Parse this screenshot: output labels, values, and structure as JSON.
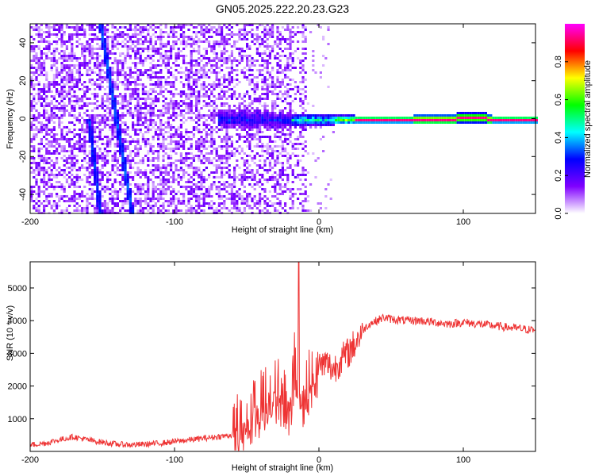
{
  "title": "GN05.2025.222.20.23.G23",
  "chart_data": [
    {
      "type": "heatmap",
      "xlabel": "Height of straight line (km)",
      "ylabel": "Frequency (Hz)",
      "xlim": [
        -200,
        150
      ],
      "ylim": [
        -50,
        50
      ],
      "xticks": [
        -200,
        -100,
        0,
        100
      ],
      "yticks": [
        -40,
        -20,
        0,
        20,
        40
      ],
      "colorbar": {
        "label": "Normalized spectral amplitude",
        "range": [
          0,
          1
        ],
        "ticks": [
          0.0,
          0.2,
          0.4,
          0.6,
          0.8
        ],
        "colormap": [
          "#ffffff",
          "#8000ff",
          "#0000ff",
          "#00ffff",
          "#00ff00",
          "#ffff00",
          "#ff0000",
          "#ff00ff"
        ]
      },
      "features": [
        {
          "name": "scatter",
          "x": [
            -200,
            -10
          ],
          "y": [
            -50,
            50
          ],
          "amplitude": 0.1
        },
        {
          "name": "diagonal-streak-1",
          "x": [
            -152,
            -130
          ],
          "y": [
            50,
            -50
          ],
          "amplitude": 0.22
        },
        {
          "name": "diagonal-streak-2",
          "x": [
            -160,
            -152
          ],
          "y": [
            0,
            -50
          ],
          "amplitude": 0.2
        },
        {
          "name": "central-band",
          "x": [
            -70,
            150
          ],
          "y": [
            0,
            0
          ],
          "amplitude": 0.9
        }
      ]
    },
    {
      "type": "line",
      "xlabel": "Height of straight line (km)",
      "ylabel": "SNR (10 * v/v)",
      "xlim": [
        -200,
        150
      ],
      "ylim": [
        0,
        5800
      ],
      "xticks": [
        -200,
        -100,
        0,
        100
      ],
      "yticks": [
        1000,
        2000,
        3000,
        4000,
        5000
      ],
      "color": "#ee3333",
      "series": [
        {
          "x": [
            -200,
            -190,
            -180,
            -170,
            -160,
            -150,
            -140,
            -130,
            -120,
            -110,
            -100,
            -90,
            -80,
            -70,
            -60,
            -55,
            -50,
            -45,
            -40,
            -35,
            -30,
            -25,
            -20,
            -17,
            -15,
            -12,
            -10,
            -5,
            0,
            5,
            10,
            15,
            20,
            25,
            30,
            35,
            40,
            45,
            50,
            60,
            70,
            80,
            90,
            100,
            110,
            120,
            130,
            140,
            150
          ],
          "y": [
            200,
            250,
            350,
            450,
            350,
            280,
            220,
            200,
            220,
            250,
            300,
            350,
            400,
            450,
            500,
            800,
            1100,
            1400,
            1500,
            1700,
            1900,
            1800,
            1500,
            2700,
            2000,
            1700,
            1900,
            2300,
            2600,
            2700,
            2500,
            2800,
            3000,
            3300,
            3700,
            3900,
            4000,
            4100,
            4050,
            4000,
            4000,
            3950,
            3900,
            3950,
            3900,
            3850,
            3800,
            3750,
            3700
          ]
        }
      ]
    }
  ]
}
